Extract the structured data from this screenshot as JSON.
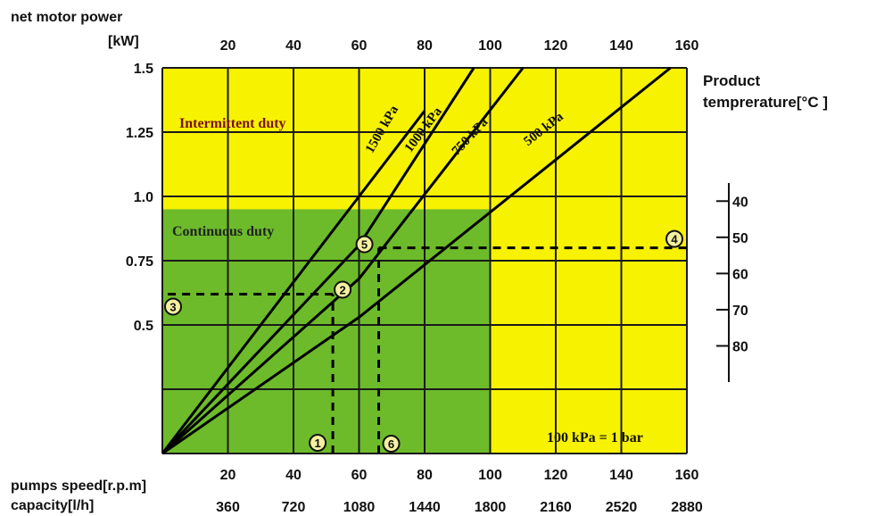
{
  "chart_data": {
    "type": "line",
    "y_title": "net motor power",
    "y_unit": "[kW]",
    "y_ticks": [
      "1.5",
      "1.25",
      "1.0",
      "0.75",
      "0.5"
    ],
    "y_tick_values": [
      1.5,
      1.25,
      1.0,
      0.75,
      0.5
    ],
    "ylim": [
      0,
      1.5
    ],
    "top_ticks": [
      "20",
      "40",
      "60",
      "80",
      "100",
      "120",
      "140",
      "160"
    ],
    "x_values": [
      20,
      40,
      60,
      80,
      100,
      120,
      140,
      160
    ],
    "xlim": [
      0,
      160
    ],
    "bottom_label_speed": "pumps speed[r.p.m]",
    "bottom_label_capacity": "capacity[l/h]",
    "speed_ticks": [
      "20",
      "40",
      "60",
      "80",
      "100",
      "120",
      "140",
      "160"
    ],
    "capacity_ticks": [
      "360",
      "720",
      "1080",
      "1440",
      "1800",
      "2160",
      "2520",
      "2880"
    ],
    "right_title_line1": "Product",
    "right_title_line2": "tempreraturе[°C ]",
    "temp_ticks": [
      "40",
      "50",
      "60",
      "70",
      "80"
    ],
    "temp_values": [
      40,
      50,
      60,
      70,
      80
    ],
    "temp_range": [
      35,
      90
    ],
    "zones": [
      {
        "label": "Intermittent duty",
        "color": "#f7f200"
      },
      {
        "label": "Continuous duty",
        "color": "#6dbb2a"
      }
    ],
    "continuous_limits": {
      "max_power": 0.95,
      "max_speed": 100
    },
    "series": [
      {
        "name": "1500 kPa",
        "x": [
          0,
          60,
          80
        ],
        "y": [
          0,
          1.0,
          1.333
        ]
      },
      {
        "name": "1000 kPa",
        "x": [
          0,
          60,
          95
        ],
        "y": [
          0,
          0.81,
          1.5
        ]
      },
      {
        "name": "750 kPa",
        "x": [
          0,
          60,
          110
        ],
        "y": [
          0,
          0.68,
          1.5
        ]
      },
      {
        "name": "500 kPa",
        "x": [
          0,
          60,
          155
        ],
        "y": [
          0,
          0.53,
          1.5
        ]
      }
    ],
    "note": "100 kPa = 1 bar",
    "example_points": [
      {
        "id": "1",
        "glyph": "①",
        "x": 52,
        "y": 0
      },
      {
        "id": "2",
        "glyph": "②",
        "x": 52,
        "y": 0.62
      },
      {
        "id": "3",
        "glyph": "③",
        "x": 0,
        "y": 0.62
      },
      {
        "id": "4",
        "glyph": "④",
        "x": 160,
        "y": 0.8
      },
      {
        "id": "5",
        "glyph": "⑤",
        "x": 66,
        "y": 0.8
      },
      {
        "id": "6",
        "glyph": "⑥",
        "x": 66,
        "y": 0
      }
    ],
    "example_lines": [
      {
        "x": [
          52,
          52
        ],
        "y": [
          0,
          0.62
        ]
      },
      {
        "x": [
          52,
          0
        ],
        "y": [
          0.62,
          0.62
        ]
      },
      {
        "x": [
          66,
          66
        ],
        "y": [
          0,
          0.8
        ]
      },
      {
        "x": [
          66,
          160
        ],
        "y": [
          0.8,
          0.8
        ]
      }
    ],
    "colors": {
      "yellow": "#f7f200",
      "green": "#6dbb2a",
      "grid": "#1a1a1a",
      "line": "#000000"
    },
    "grid": true
  }
}
